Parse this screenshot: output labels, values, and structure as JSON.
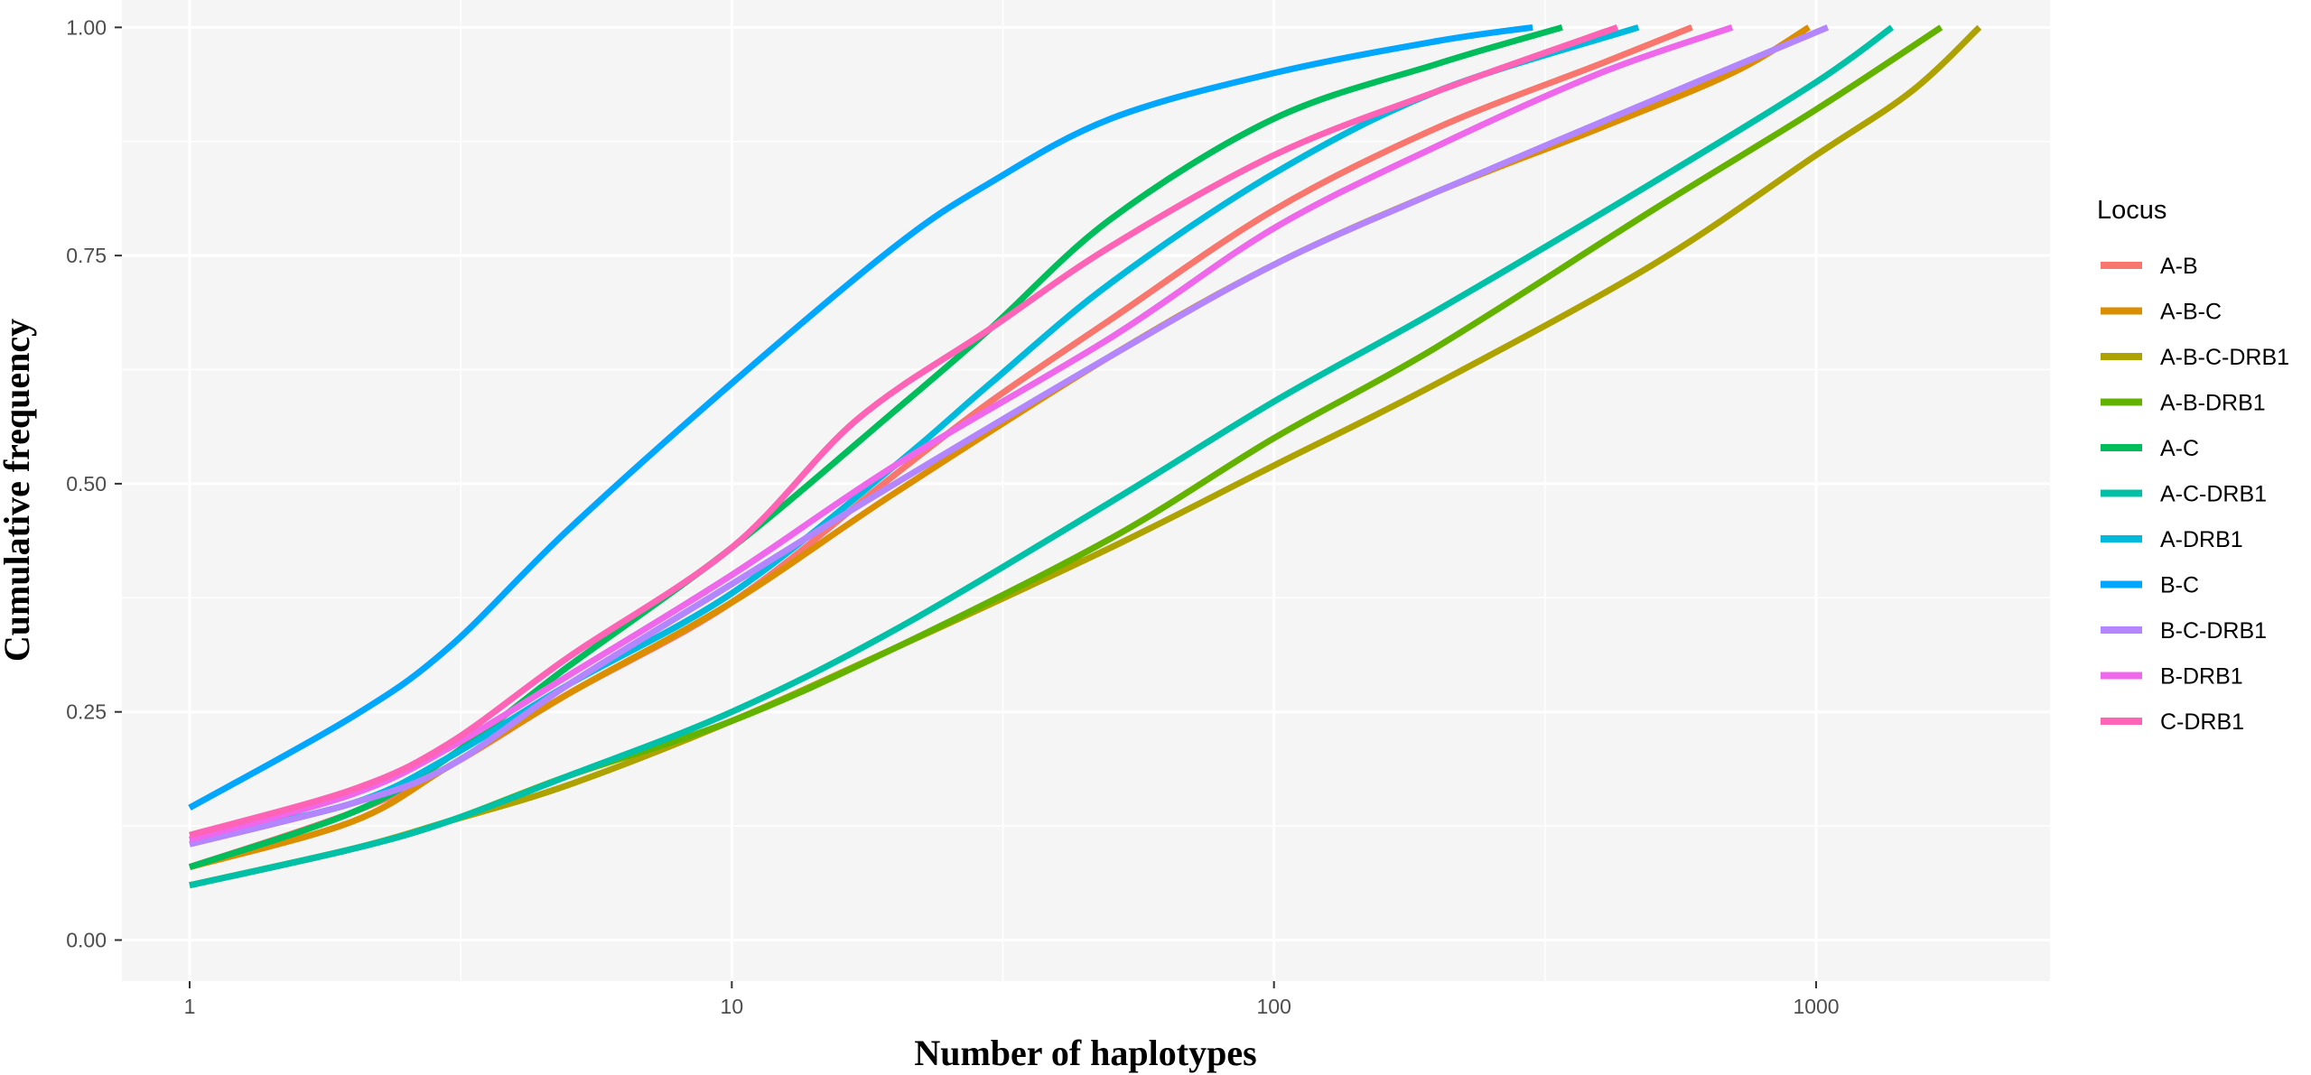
{
  "chart_data": {
    "type": "line",
    "title": "",
    "xlabel": "Number of haplotypes",
    "ylabel": "Cumulative frequency",
    "x_scale": "log10",
    "xlim": [
      0.75,
      2700
    ],
    "ylim": [
      -0.045,
      1.03
    ],
    "x_ticks": [
      1,
      10,
      100,
      1000
    ],
    "x_tick_labels": [
      "1",
      "10",
      "100",
      "1000"
    ],
    "y_ticks": [
      0,
      0.25,
      0.5,
      0.75,
      1
    ],
    "y_tick_labels": [
      "0.00",
      "0.25",
      "0.50",
      "0.75",
      "1.00"
    ],
    "grid": true,
    "legend_title": "Locus",
    "legend_position": "right",
    "series": [
      {
        "name": "A-B",
        "color": "#F8766D",
        "x": [
          1,
          2,
          3,
          5,
          10,
          20,
          30,
          50,
          100,
          200,
          400,
          590
        ],
        "y": [
          0.08,
          0.14,
          0.19,
          0.27,
          0.37,
          0.51,
          0.59,
          0.68,
          0.8,
          0.89,
          0.96,
          1.0
        ]
      },
      {
        "name": "A-B-C",
        "color": "#DB8E00",
        "x": [
          1,
          2,
          3,
          5,
          10,
          20,
          50,
          100,
          200,
          400,
          700,
          970
        ],
        "y": [
          0.08,
          0.13,
          0.19,
          0.27,
          0.37,
          0.49,
          0.64,
          0.74,
          0.82,
          0.89,
          0.95,
          1.0
        ]
      },
      {
        "name": "A-B-C-DRB1",
        "color": "#AEA200",
        "x": [
          1,
          2,
          3,
          5,
          10,
          20,
          50,
          100,
          200,
          500,
          1000,
          1500,
          2000
        ],
        "y": [
          0.06,
          0.1,
          0.13,
          0.17,
          0.24,
          0.32,
          0.43,
          0.52,
          0.61,
          0.74,
          0.86,
          0.93,
          1.0
        ]
      },
      {
        "name": "A-B-DRB1",
        "color": "#64B200",
        "x": [
          1,
          2,
          3,
          5,
          10,
          20,
          50,
          100,
          200,
          500,
          1000,
          1700
        ],
        "y": [
          0.06,
          0.1,
          0.13,
          0.18,
          0.24,
          0.32,
          0.44,
          0.55,
          0.65,
          0.8,
          0.91,
          1.0
        ]
      },
      {
        "name": "A-C",
        "color": "#00BD5C",
        "x": [
          1,
          2,
          3,
          5,
          10,
          20,
          30,
          50,
          100,
          200,
          340
        ],
        "y": [
          0.08,
          0.14,
          0.2,
          0.3,
          0.43,
          0.58,
          0.67,
          0.79,
          0.9,
          0.96,
          1.0
        ]
      },
      {
        "name": "A-C-DRB1",
        "color": "#00C1A7",
        "x": [
          1,
          2,
          3,
          5,
          10,
          20,
          50,
          100,
          200,
          500,
          1000,
          1380
        ],
        "y": [
          0.06,
          0.1,
          0.13,
          0.18,
          0.25,
          0.34,
          0.48,
          0.59,
          0.69,
          0.83,
          0.94,
          1.0
        ]
      },
      {
        "name": "A-DRB1",
        "color": "#00BADE",
        "x": [
          1,
          2,
          3,
          5,
          10,
          20,
          30,
          50,
          100,
          200,
          470
        ],
        "y": [
          0.11,
          0.15,
          0.2,
          0.28,
          0.38,
          0.52,
          0.61,
          0.72,
          0.84,
          0.93,
          1.0
        ]
      },
      {
        "name": "B-C",
        "color": "#00A6FF",
        "x": [
          1,
          2,
          3,
          5,
          10,
          20,
          30,
          50,
          100,
          200,
          300
        ],
        "y": [
          0.145,
          0.245,
          0.32,
          0.45,
          0.61,
          0.76,
          0.83,
          0.9,
          0.95,
          0.985,
          1.0
        ]
      },
      {
        "name": "B-C-DRB1",
        "color": "#B385FF",
        "x": [
          1,
          2,
          3,
          5,
          10,
          20,
          50,
          100,
          200,
          500,
          1050
        ],
        "y": [
          0.105,
          0.15,
          0.19,
          0.28,
          0.39,
          0.5,
          0.64,
          0.74,
          0.82,
          0.92,
          1.0
        ]
      },
      {
        "name": "B-DRB1",
        "color": "#EF67EB",
        "x": [
          1,
          2,
          3,
          5,
          10,
          20,
          50,
          100,
          200,
          400,
          700
        ],
        "y": [
          0.11,
          0.16,
          0.21,
          0.29,
          0.4,
          0.52,
          0.66,
          0.78,
          0.87,
          0.95,
          1.0
        ]
      },
      {
        "name": "C-DRB1",
        "color": "#FF63B6",
        "x": [
          1,
          2,
          3,
          5,
          10,
          17,
          30,
          50,
          100,
          200,
          430
        ],
        "y": [
          0.115,
          0.165,
          0.215,
          0.31,
          0.43,
          0.57,
          0.67,
          0.76,
          0.86,
          0.93,
          1.0
        ]
      }
    ]
  }
}
